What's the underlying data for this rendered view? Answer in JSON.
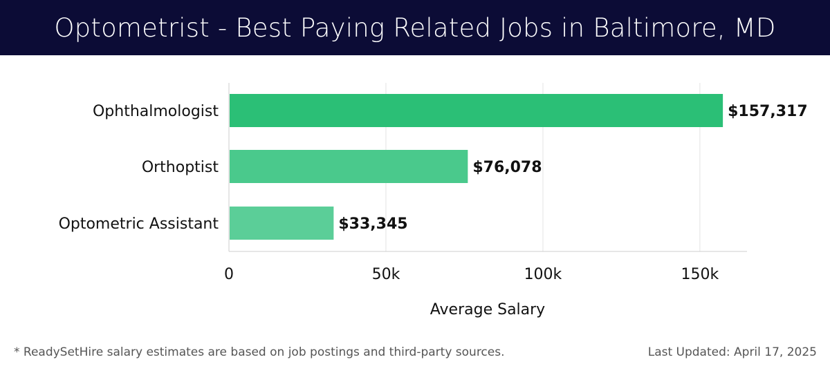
{
  "header": {
    "title": "Optometrist - Best Paying Related Jobs in Baltimore, MD"
  },
  "chart_data": {
    "type": "bar",
    "orientation": "horizontal",
    "categories": [
      "Ophthalmologist",
      "Orthoptist",
      "Optometric Assistant"
    ],
    "values": [
      157317,
      76078,
      33345
    ],
    "value_labels": [
      "$157,317",
      "$76,078",
      "$33,345"
    ],
    "bar_colors": [
      "#2bbf76",
      "#4ac98c",
      "#5bce98"
    ],
    "xlabel": "Average Salary",
    "ylabel": "",
    "xlim": [
      0,
      165000
    ],
    "x_ticks": [
      0,
      50000,
      100000,
      150000
    ],
    "x_tick_labels": [
      "0",
      "50k",
      "100k",
      "150k"
    ],
    "grid": "vertical"
  },
  "footer": {
    "note": "* ReadySetHire salary estimates are based on job postings and third-party sources.",
    "updated": "Last Updated: April 17, 2025"
  }
}
